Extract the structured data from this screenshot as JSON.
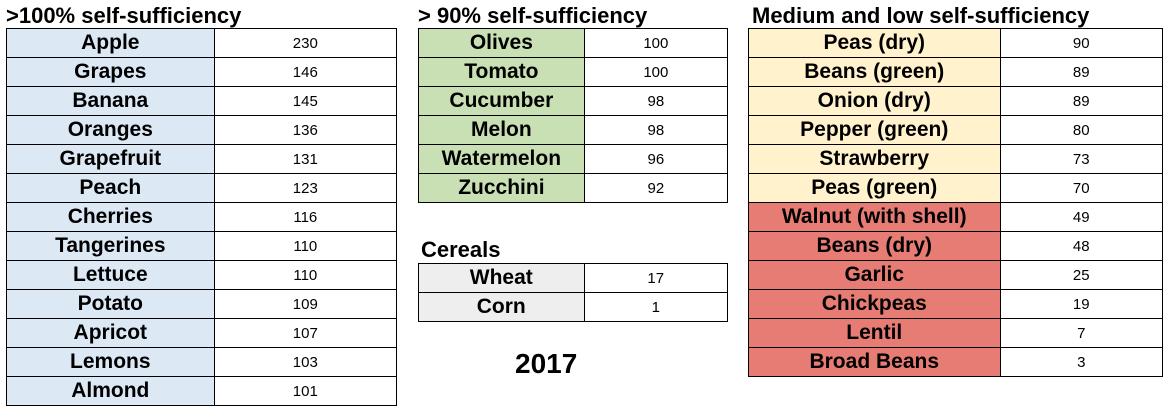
{
  "colors": {
    "high": "#dce9f5",
    "ninety": "#c9e0b4",
    "medium": "#fff2cc",
    "low": "#e67c73",
    "cereal": "#eeeeee"
  },
  "sections": {
    "high": {
      "title": ">100% self-sufficiency",
      "rows": [
        {
          "name": "Apple",
          "value": "230"
        },
        {
          "name": "Grapes",
          "value": "146"
        },
        {
          "name": "Banana",
          "value": "145"
        },
        {
          "name": "Oranges",
          "value": "136"
        },
        {
          "name": "Grapefruit",
          "value": "131"
        },
        {
          "name": "Peach",
          "value": "123"
        },
        {
          "name": "Cherries",
          "value": "116"
        },
        {
          "name": "Tangerines",
          "value": "110"
        },
        {
          "name": "Lettuce",
          "value": "110"
        },
        {
          "name": "Potato",
          "value": "109"
        },
        {
          "name": "Apricot",
          "value": "107"
        },
        {
          "name": "Lemons",
          "value": "103"
        },
        {
          "name": "Almond",
          "value": "101"
        }
      ]
    },
    "ninety": {
      "title": "> 90% self-sufficiency",
      "rows": [
        {
          "name": "Olives",
          "value": "100"
        },
        {
          "name": "Tomato",
          "value": "100"
        },
        {
          "name": "Cucumber",
          "value": "98"
        },
        {
          "name": "Melon",
          "value": "98"
        },
        {
          "name": "Watermelon",
          "value": "96"
        },
        {
          "name": "Zucchini",
          "value": "92"
        }
      ]
    },
    "cereals": {
      "title": "Cereals",
      "rows": [
        {
          "name": "Wheat",
          "value": "17"
        },
        {
          "name": "Corn",
          "value": "1"
        }
      ]
    },
    "medium": {
      "title": "Medium and low self-sufficiency",
      "rows": [
        {
          "name": "Peas (dry)",
          "value": "90",
          "level": "medium"
        },
        {
          "name": "Beans (green)",
          "value": "89",
          "level": "medium"
        },
        {
          "name": "Onion (dry)",
          "value": "89",
          "level": "medium"
        },
        {
          "name": "Pepper (green)",
          "value": "80",
          "level": "medium"
        },
        {
          "name": "Strawberry",
          "value": "73",
          "level": "medium"
        },
        {
          "name": "Peas (green)",
          "value": "70",
          "level": "medium"
        },
        {
          "name": "Walnut (with shell)",
          "value": "49",
          "level": "low"
        },
        {
          "name": "Beans (dry)",
          "value": "48",
          "level": "low"
        },
        {
          "name": "Garlic",
          "value": "25",
          "level": "low"
        },
        {
          "name": "Chickpeas",
          "value": "19",
          "level": "low"
        },
        {
          "name": "Lentil",
          "value": "7",
          "level": "low"
        },
        {
          "name": "Broad Beans",
          "value": "3",
          "level": "low"
        }
      ]
    }
  },
  "year": "2017"
}
